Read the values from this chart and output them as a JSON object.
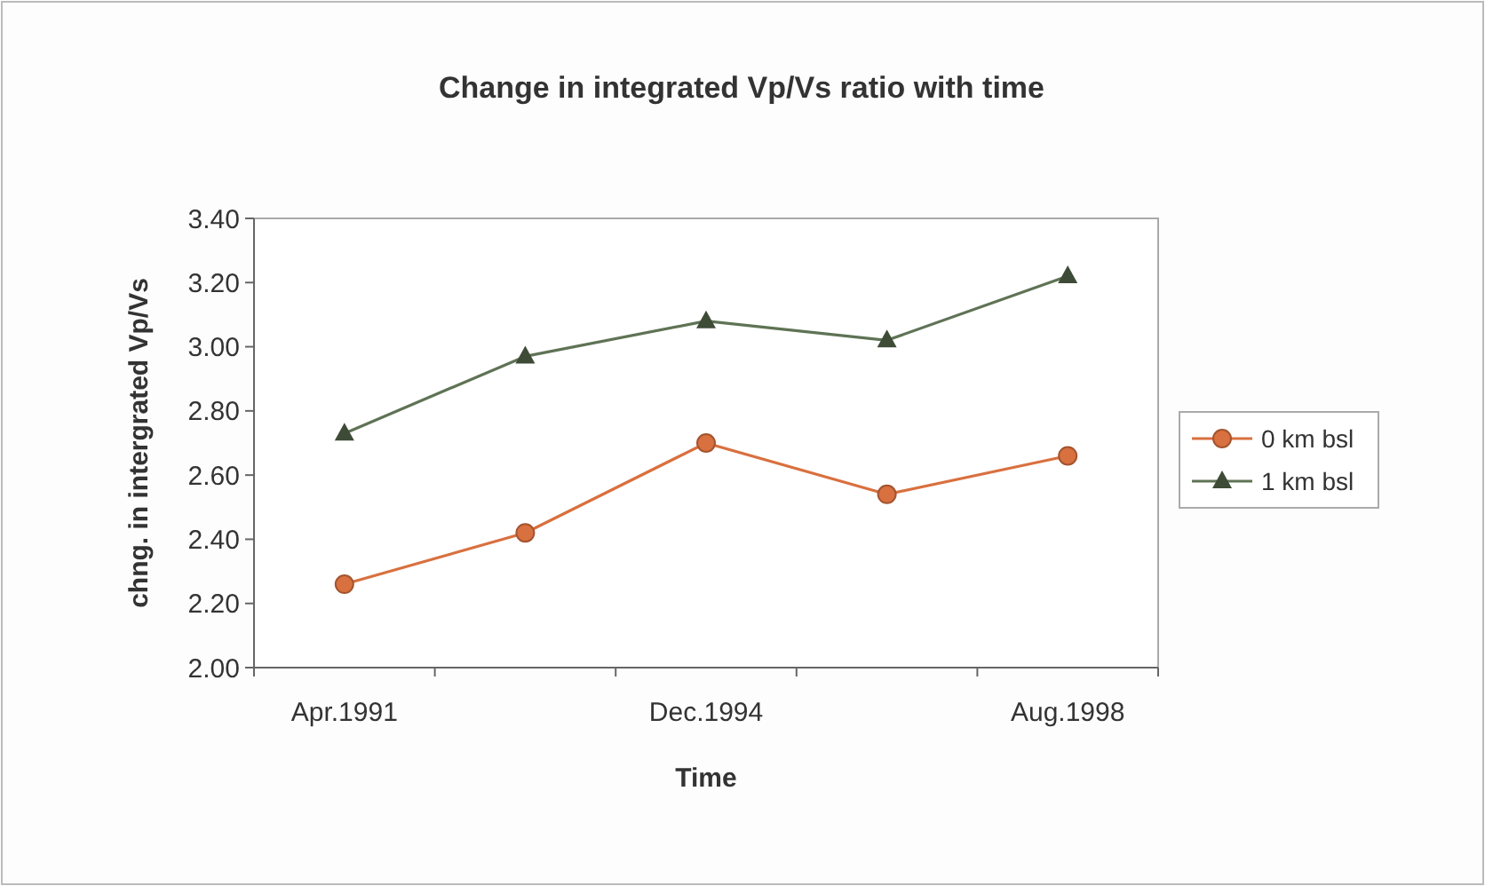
{
  "chart_data": {
    "type": "line",
    "title": "Change in integrated Vp/Vs ratio with time",
    "xlabel": "Time",
    "ylabel": "chng. in intergrated Vp/Vs",
    "categories": [
      "Apr.1991",
      null,
      "Dec.1994",
      null,
      "Aug.1998"
    ],
    "series": [
      {
        "name": "0 km bsl",
        "color": "#d9703f",
        "marker": "circle",
        "values": [
          2.26,
          2.42,
          2.7,
          2.54,
          2.66
        ]
      },
      {
        "name": "1 km bsl",
        "color": "#5f7355",
        "marker": "triangle",
        "values": [
          2.73,
          2.97,
          3.08,
          3.02,
          3.22
        ]
      }
    ],
    "ylim": [
      2.0,
      3.4
    ],
    "yticks": [
      {
        "value": 2.0,
        "label": "2.00"
      },
      {
        "value": 2.2,
        "label": "2.20"
      },
      {
        "value": 2.4,
        "label": "2.40"
      },
      {
        "value": 2.6,
        "label": "2.60"
      },
      {
        "value": 2.8,
        "label": "2.80"
      },
      {
        "value": 3.0,
        "label": "3.00"
      },
      {
        "value": 3.2,
        "label": "3.20"
      },
      {
        "value": 3.4,
        "label": "3.40"
      }
    ],
    "grid": false,
    "legend": "right"
  }
}
